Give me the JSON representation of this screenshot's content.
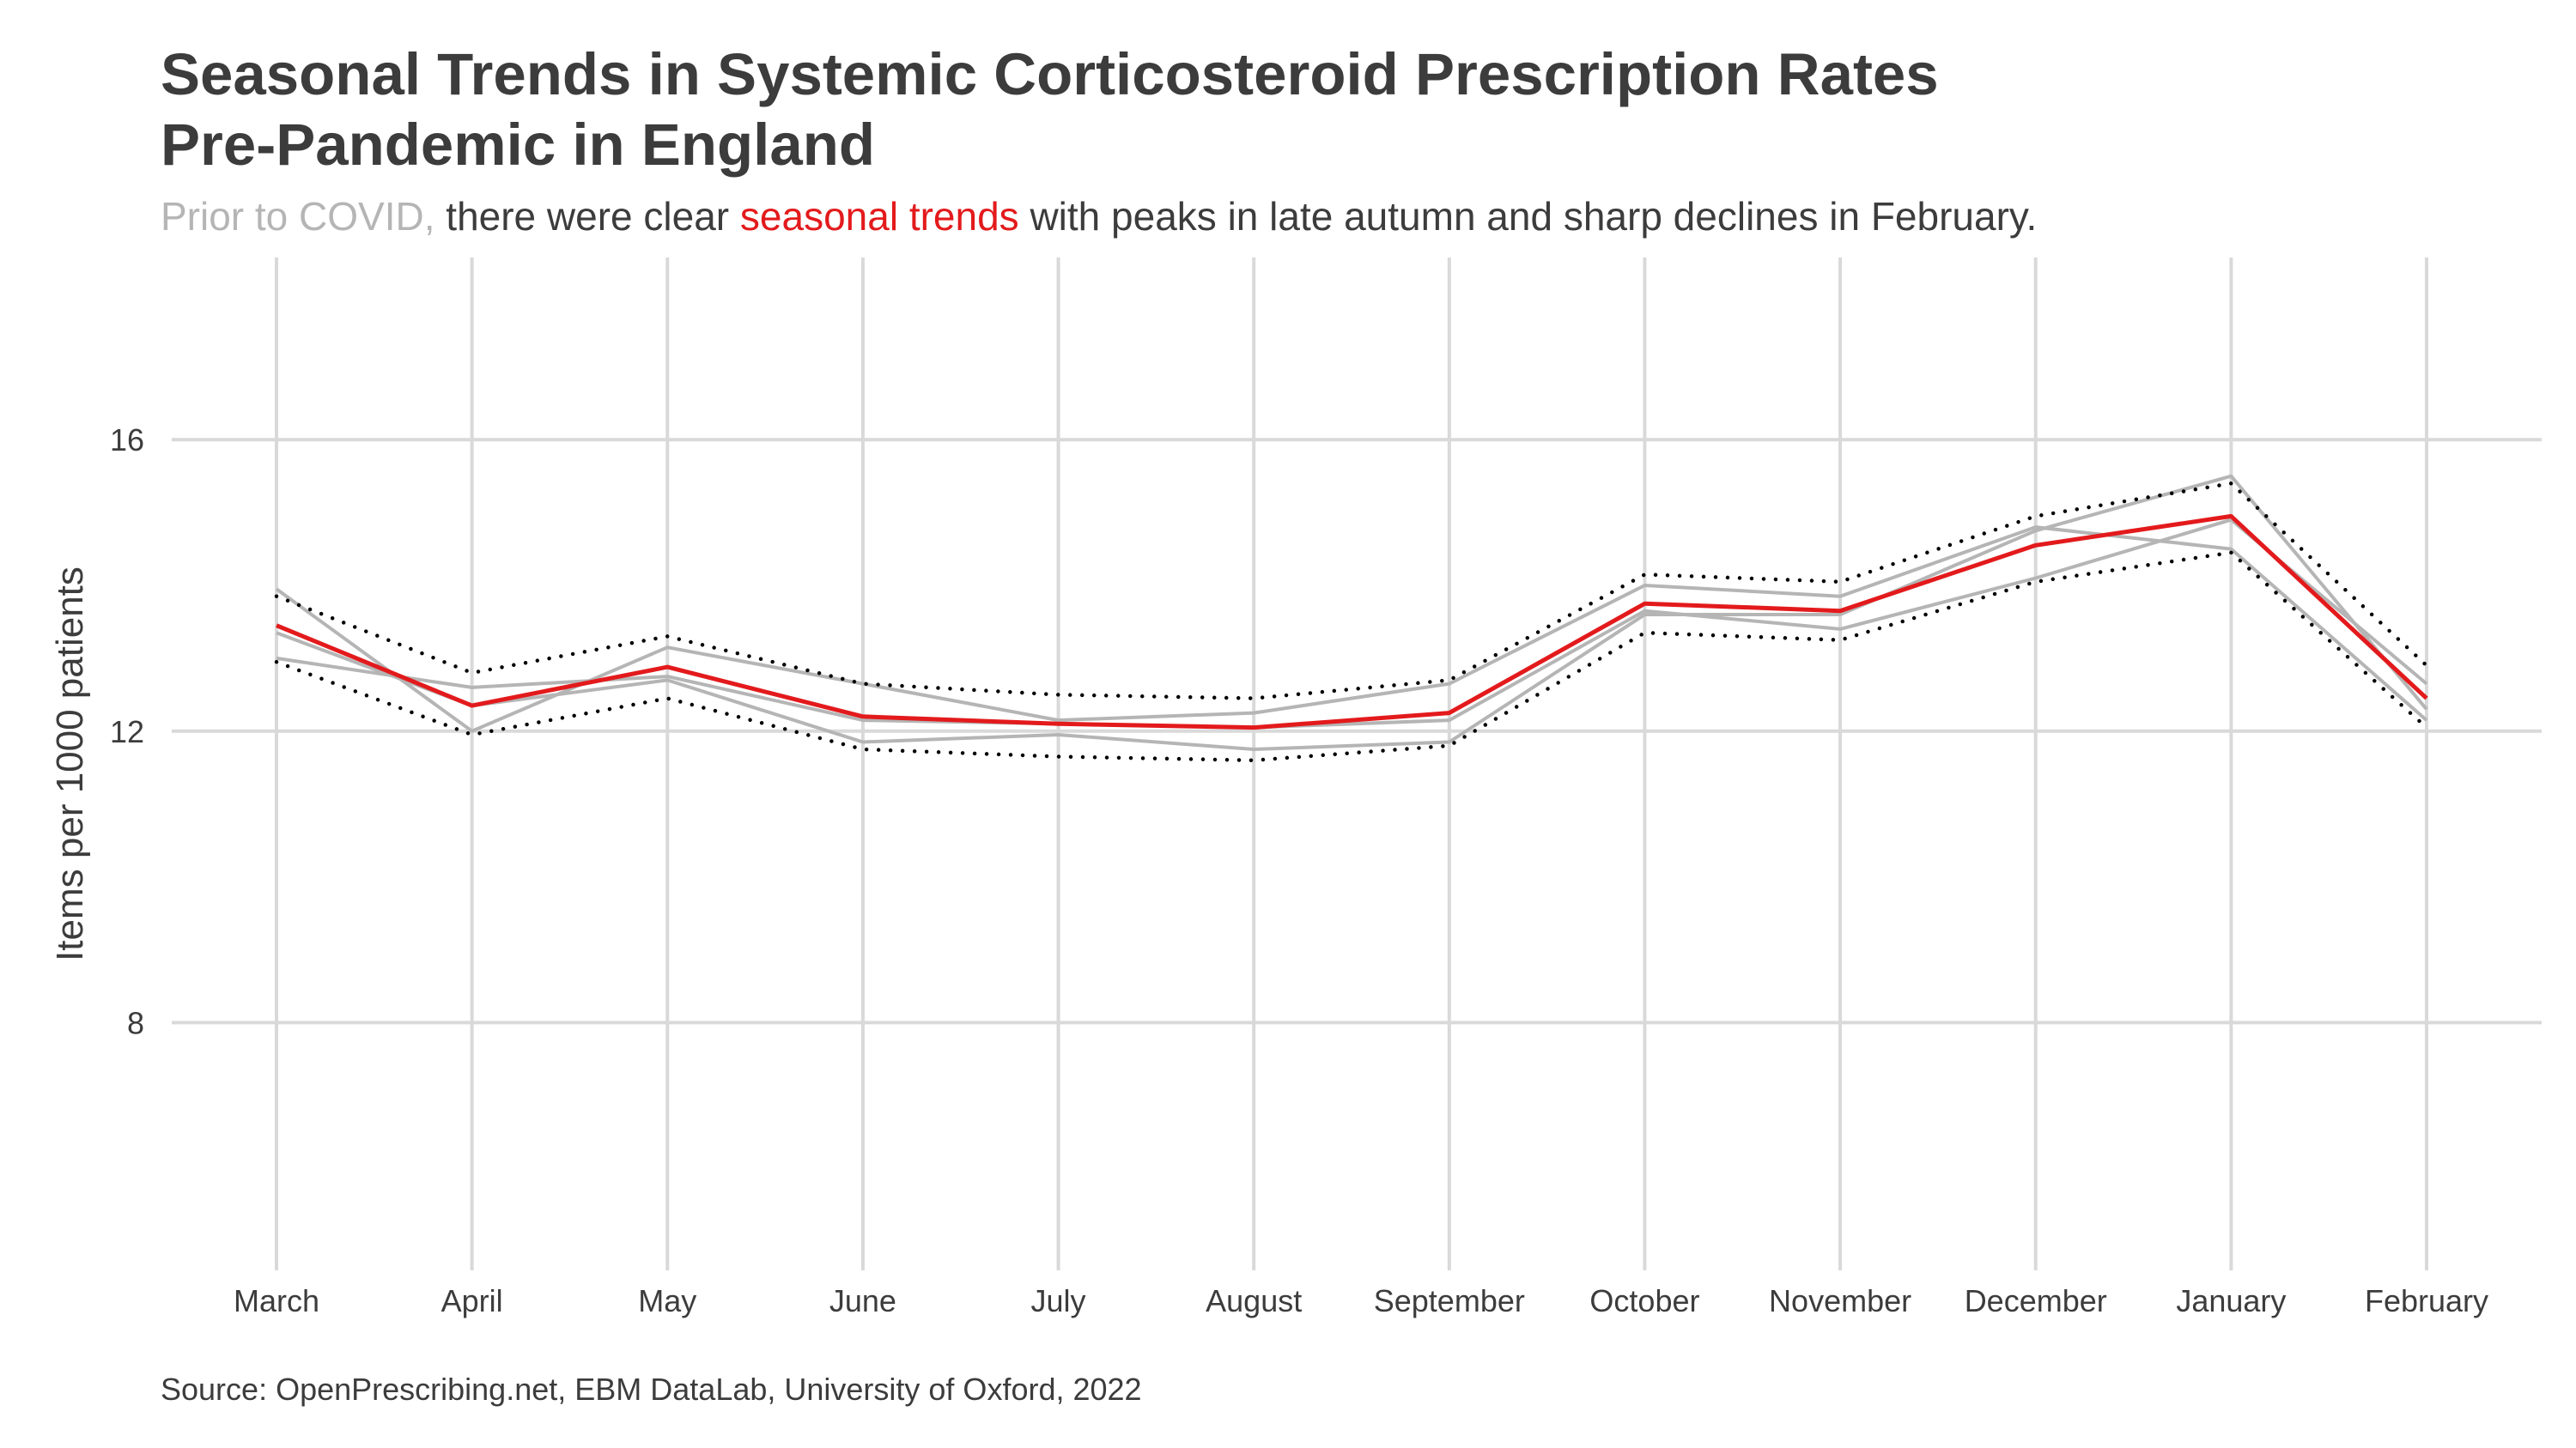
{
  "title_lines": [
    "Seasonal Trends in Systemic Corticosteroid Prescription Rates",
    "Pre-Pandemic in England"
  ],
  "subtitle": {
    "part1": "Prior to COVID,",
    "part2": " there were clear ",
    "part3": "seasonal trends",
    "part4": " with peaks in late autumn and sharp declines in February."
  },
  "source": "Source: OpenPrescribing.net, EBM DataLab, University of Oxford, 2022",
  "colors": {
    "highlight": "#e31a1c",
    "prior": "#b5b5b5",
    "text": "#3c3c3c",
    "grid": "#d9d9d9",
    "range": "#000000"
  },
  "chart_data": {
    "type": "line",
    "title": "Seasonal Trends in Systemic Corticosteroid Prescription Rates Pre-Pandemic in England",
    "xlabel": "",
    "ylabel": "Items per 1000 patients",
    "ylim": [
      4.6,
      18.5
    ],
    "yticks": [
      8,
      12,
      16
    ],
    "grid": true,
    "legend": "none",
    "categories": [
      "March",
      "April",
      "May",
      "June",
      "July",
      "August",
      "September",
      "October",
      "November",
      "December",
      "January",
      "February"
    ],
    "series": [
      {
        "role": "mean",
        "style": "solid-red",
        "values": [
          13.45,
          12.35,
          12.88,
          12.2,
          12.1,
          12.05,
          12.25,
          13.75,
          13.65,
          14.55,
          14.95,
          12.45
        ]
      },
      {
        "role": "individual-year",
        "style": "solid-grey",
        "values": [
          13.95,
          12.0,
          13.15,
          12.65,
          12.15,
          12.25,
          12.65,
          14.0,
          13.85,
          14.8,
          14.5,
          12.15
        ]
      },
      {
        "role": "individual-year",
        "style": "solid-grey",
        "values": [
          13.0,
          12.6,
          12.75,
          12.15,
          12.1,
          12.05,
          12.15,
          13.65,
          13.4,
          14.1,
          14.9,
          12.65
        ]
      },
      {
        "role": "individual-year",
        "style": "solid-grey",
        "values": [
          13.35,
          12.35,
          12.7,
          11.85,
          11.95,
          11.75,
          11.85,
          13.6,
          13.6,
          14.75,
          15.5,
          12.3
        ]
      },
      {
        "role": "upper-bound",
        "style": "dotted-black",
        "values": [
          13.85,
          12.8,
          13.3,
          12.65,
          12.5,
          12.45,
          12.7,
          14.15,
          14.05,
          14.95,
          15.4,
          12.9
        ]
      },
      {
        "role": "lower-bound",
        "style": "dotted-black",
        "values": [
          12.95,
          11.95,
          12.45,
          11.75,
          11.65,
          11.6,
          11.8,
          13.35,
          13.25,
          14.05,
          14.45,
          12.05
        ]
      }
    ]
  }
}
